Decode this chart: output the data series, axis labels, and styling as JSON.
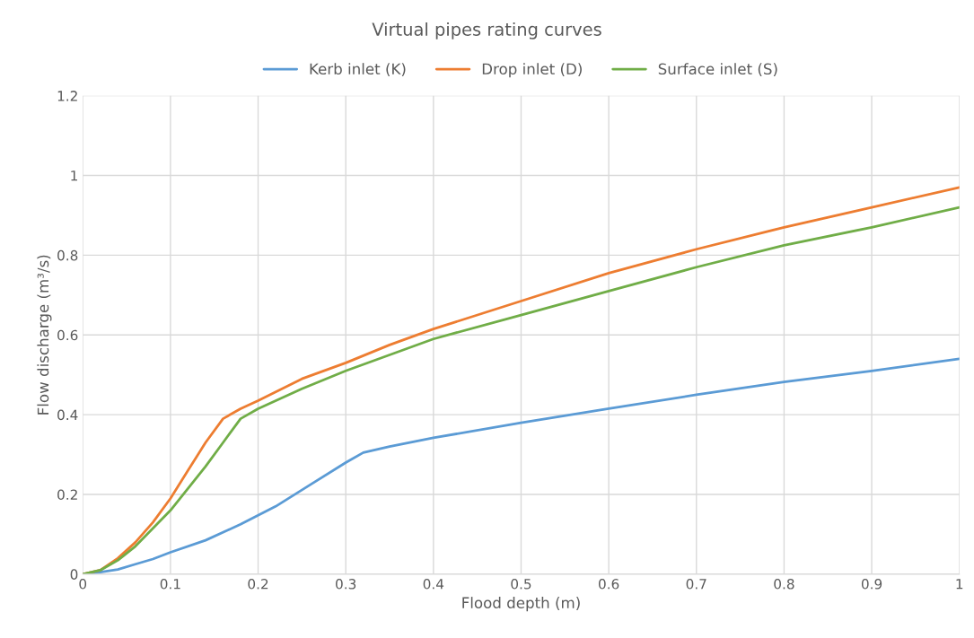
{
  "chart_data": {
    "type": "line",
    "title": "Virtual pipes rating curves",
    "xlabel": "Flood depth (m)",
    "ylabel": "Flow discharge (m³/s)",
    "series": [
      {
        "name": "Kerb inlet (K)",
        "color": "#5b9bd5",
        "x": [
          0,
          0.02,
          0.04,
          0.06,
          0.08,
          0.1,
          0.14,
          0.18,
          0.22,
          0.26,
          0.3,
          0.32,
          0.35,
          0.4,
          0.5,
          0.6,
          0.7,
          0.8,
          0.9,
          1
        ],
        "values": [
          0,
          0.005,
          0.012,
          0.025,
          0.038,
          0.055,
          0.085,
          0.125,
          0.17,
          0.225,
          0.28,
          0.305,
          0.32,
          0.342,
          0.38,
          0.415,
          0.45,
          0.482,
          0.51,
          0.54
        ]
      },
      {
        "name": "Drop inlet (D)",
        "color": "#ed7d31",
        "x": [
          0,
          0.02,
          0.04,
          0.06,
          0.08,
          0.1,
          0.12,
          0.14,
          0.16,
          0.18,
          0.2,
          0.25,
          0.3,
          0.35,
          0.4,
          0.5,
          0.6,
          0.7,
          0.8,
          0.9,
          1
        ],
        "values": [
          0,
          0.01,
          0.04,
          0.08,
          0.13,
          0.19,
          0.26,
          0.33,
          0.39,
          0.415,
          0.435,
          0.49,
          0.53,
          0.575,
          0.615,
          0.685,
          0.755,
          0.815,
          0.87,
          0.92,
          0.97
        ]
      },
      {
        "name": "Surface inlet (S)",
        "color": "#70ad47",
        "x": [
          0,
          0.02,
          0.04,
          0.06,
          0.08,
          0.1,
          0.12,
          0.14,
          0.16,
          0.18,
          0.2,
          0.25,
          0.3,
          0.35,
          0.4,
          0.5,
          0.6,
          0.7,
          0.8,
          0.9,
          1
        ],
        "values": [
          0,
          0.01,
          0.035,
          0.07,
          0.115,
          0.16,
          0.215,
          0.27,
          0.33,
          0.39,
          0.415,
          0.465,
          0.51,
          0.55,
          0.59,
          0.65,
          0.71,
          0.77,
          0.825,
          0.87,
          0.92
        ]
      }
    ],
    "xlim": [
      0,
      1
    ],
    "xticks": [
      0,
      0.1,
      0.2,
      0.3,
      0.4,
      0.5,
      0.6,
      0.7,
      0.8,
      0.9,
      1
    ],
    "ylim": [
      0,
      1.2
    ],
    "yticks": [
      0,
      0.2,
      0.4,
      0.6,
      0.8,
      1,
      1.2
    ],
    "grid": true,
    "legend": "top",
    "marker": "none",
    "line_style": "solid"
  }
}
